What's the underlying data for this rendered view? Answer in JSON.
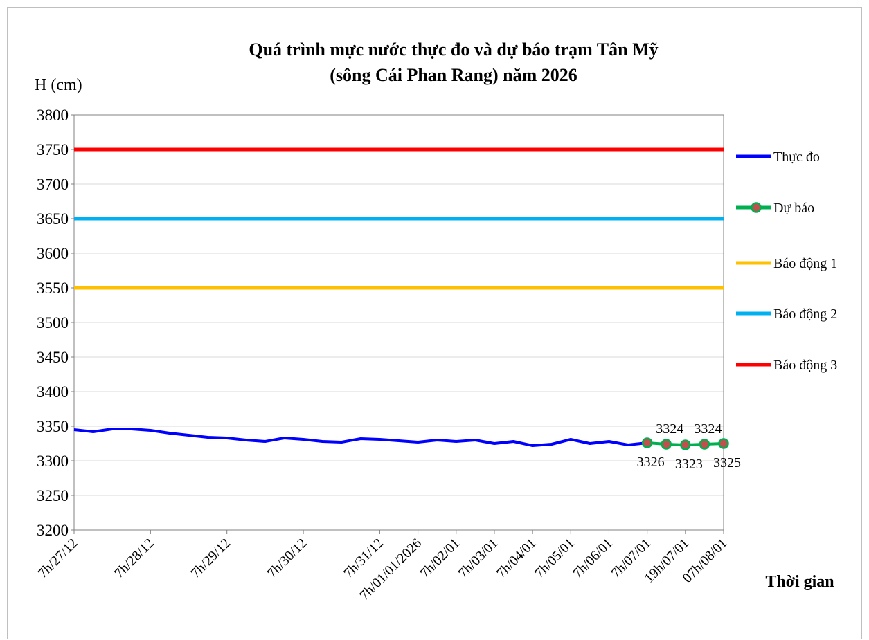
{
  "chart_data": {
    "type": "line",
    "title": [
      "Quá trình mực nước thực đo và dự báo trạm Tân Mỹ",
      "(sông Cái Phan Rang) năm 2026"
    ],
    "ylabel": "H (cm)",
    "xlabel": "Thời gian",
    "categories": [
      "7h/27/12",
      null,
      null,
      null,
      "7h/28/12",
      null,
      null,
      null,
      "7h/29/12",
      null,
      null,
      null,
      "7h/30/12",
      null,
      null,
      null,
      "7h/31/12",
      null,
      "7h/01/01/2026",
      null,
      "7h/02/01",
      null,
      "7h/03/01",
      null,
      "7h/04/01",
      null,
      "7h/05/01",
      null,
      "7h/06/01",
      null,
      "7h/07/01",
      null,
      "19h/07/01",
      null,
      "07h/08/01"
    ],
    "ylim": [
      3200,
      3800
    ],
    "yticks": [
      3200,
      3250,
      3300,
      3350,
      3400,
      3450,
      3500,
      3550,
      3600,
      3650,
      3700,
      3750,
      3800
    ],
    "grid": true,
    "series": [
      {
        "name": "Thực đo",
        "color": "#0000ff",
        "values": [
          3345,
          3342,
          3346,
          3346,
          3344,
          3340,
          3337,
          3334,
          3333,
          3330,
          3328,
          3333,
          3331,
          3328,
          3327,
          3332,
          3331,
          3329,
          3327,
          3330,
          3328,
          3330,
          3325,
          3328,
          3322,
          3324,
          3331,
          3325,
          3328,
          3323,
          3326,
          null,
          null,
          null,
          null
        ]
      },
      {
        "name": "Dự báo",
        "color": "#00b050",
        "marker_color": "#c0504d",
        "values": [
          null,
          null,
          null,
          null,
          null,
          null,
          null,
          null,
          null,
          null,
          null,
          null,
          null,
          null,
          null,
          null,
          null,
          null,
          null,
          null,
          null,
          null,
          null,
          null,
          null,
          null,
          null,
          null,
          null,
          null,
          3326,
          3324,
          3323,
          3324,
          3325
        ]
      },
      {
        "name": "Báo động 1",
        "color": "#ffc000",
        "values": [
          3550,
          3550,
          3550,
          3550,
          3550,
          3550,
          3550,
          3550,
          3550,
          3550,
          3550,
          3550,
          3550,
          3550,
          3550,
          3550,
          3550,
          3550,
          3550,
          3550,
          3550,
          3550,
          3550,
          3550,
          3550,
          3550,
          3550,
          3550,
          3550,
          3550,
          3550,
          3550,
          3550,
          3550,
          3550
        ]
      },
      {
        "name": "Báo động 2",
        "color": "#00b0f0",
        "values": [
          3650,
          3650,
          3650,
          3650,
          3650,
          3650,
          3650,
          3650,
          3650,
          3650,
          3650,
          3650,
          3650,
          3650,
          3650,
          3650,
          3650,
          3650,
          3650,
          3650,
          3650,
          3650,
          3650,
          3650,
          3650,
          3650,
          3650,
          3650,
          3650,
          3650,
          3650,
          3650,
          3650,
          3650,
          3650
        ]
      },
      {
        "name": "Báo động 3",
        "color": "#ff0000",
        "values": [
          3750,
          3750,
          3750,
          3750,
          3750,
          3750,
          3750,
          3750,
          3750,
          3750,
          3750,
          3750,
          3750,
          3750,
          3750,
          3750,
          3750,
          3750,
          3750,
          3750,
          3750,
          3750,
          3750,
          3750,
          3750,
          3750,
          3750,
          3750,
          3750,
          3750,
          3750,
          3750,
          3750,
          3750,
          3750
        ]
      }
    ]
  }
}
